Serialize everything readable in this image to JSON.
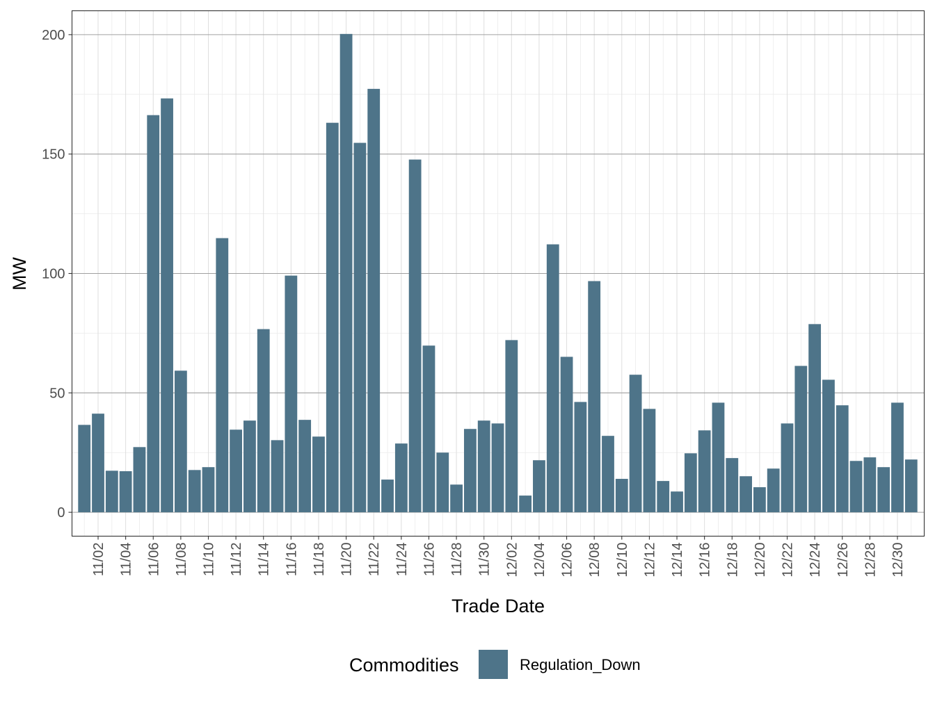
{
  "chart_data": {
    "type": "bar",
    "title": "",
    "xlabel": "Trade Date",
    "ylabel": "MW",
    "ylim": [
      -10,
      210
    ],
    "yticks": [
      0,
      50,
      100,
      150,
      200
    ],
    "grid": true,
    "legend": {
      "title": "Commodities",
      "placement": "bottom"
    },
    "categories": [
      "11/01",
      "11/02",
      "11/03",
      "11/04",
      "11/05",
      "11/06",
      "11/07",
      "11/08",
      "11/09",
      "11/10",
      "11/11",
      "11/12",
      "11/13",
      "11/14",
      "11/15",
      "11/16",
      "11/17",
      "11/18",
      "11/19",
      "11/20",
      "11/21",
      "11/22",
      "11/23",
      "11/24",
      "11/25",
      "11/26",
      "11/27",
      "11/28",
      "11/29",
      "11/30",
      "12/01",
      "12/02",
      "12/03",
      "12/04",
      "12/05",
      "12/06",
      "12/07",
      "12/08",
      "12/09",
      "12/10",
      "12/11",
      "12/12",
      "12/13",
      "12/14",
      "12/15",
      "12/16",
      "12/17",
      "12/18",
      "12/19",
      "12/20",
      "12/21",
      "12/22",
      "12/23",
      "12/24",
      "12/25",
      "12/26",
      "12/27",
      "12/28",
      "12/29",
      "12/30",
      "12/31"
    ],
    "xtick_labels": [
      "11/02",
      "11/04",
      "11/06",
      "11/08",
      "11/10",
      "11/12",
      "11/14",
      "11/16",
      "11/18",
      "11/20",
      "11/22",
      "11/24",
      "11/26",
      "11/28",
      "11/30",
      "12/02",
      "12/04",
      "12/06",
      "12/08",
      "12/10",
      "12/12",
      "12/14",
      "12/16",
      "12/18",
      "12/20",
      "12/22",
      "12/24",
      "12/26",
      "12/28",
      "12/30"
    ],
    "series": [
      {
        "name": "Regulation_Down",
        "color": "#4e7489",
        "values": [
          36.6,
          41.3,
          17.4,
          17.2,
          27.3,
          166.3,
          173.3,
          59.3,
          17.7,
          18.9,
          114.8,
          34.6,
          38.4,
          76.7,
          30.2,
          99.1,
          38.7,
          31.7,
          163.1,
          200.3,
          154.7,
          177.3,
          13.7,
          28.8,
          147.7,
          69.8,
          25.0,
          11.6,
          34.9,
          38.4,
          37.2,
          72.1,
          7.0,
          21.8,
          112.2,
          65.1,
          46.2,
          96.8,
          32.0,
          14.0,
          57.6,
          43.3,
          13.1,
          8.7,
          24.7,
          34.3,
          45.9,
          22.7,
          15.1,
          10.5,
          18.3,
          37.2,
          61.3,
          78.8,
          55.5,
          44.8,
          21.5,
          23.0,
          18.9,
          45.9,
          22.1
        ]
      }
    ]
  }
}
